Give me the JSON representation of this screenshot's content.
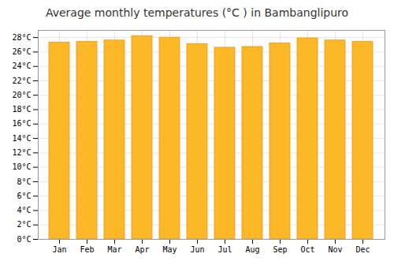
{
  "chart_data": {
    "type": "bar",
    "title": "Average monthly temperatures (°C ) in Bambanglipuro",
    "categories": [
      "Jan",
      "Feb",
      "Mar",
      "Apr",
      "May",
      "Jun",
      "Jul",
      "Aug",
      "Sep",
      "Oct",
      "Nov",
      "Dec"
    ],
    "values": [
      27.3,
      27.4,
      27.6,
      28.2,
      28.0,
      27.1,
      26.6,
      26.7,
      27.2,
      27.9,
      27.6,
      27.4
    ],
    "color": "#FDB827",
    "ylim": [
      0,
      29
    ],
    "yticks": [
      {
        "value": 0,
        "label": "0°C"
      },
      {
        "value": 2,
        "label": "2°C"
      },
      {
        "value": 4,
        "label": "4°C"
      },
      {
        "value": 6,
        "label": "6°C"
      },
      {
        "value": 8,
        "label": "8°C"
      },
      {
        "value": 10,
        "label": "10°C"
      },
      {
        "value": 12,
        "label": "12°C"
      },
      {
        "value": 14,
        "label": "14°C"
      },
      {
        "value": 16,
        "label": "16°C"
      },
      {
        "value": 18,
        "label": "18°C"
      },
      {
        "value": 20,
        "label": "20°C"
      },
      {
        "value": 22,
        "label": "22°C"
      },
      {
        "value": 24,
        "label": "24°C"
      },
      {
        "value": 26,
        "label": "26°C"
      },
      {
        "value": 28,
        "label": "28°C"
      }
    ],
    "grid": true
  }
}
